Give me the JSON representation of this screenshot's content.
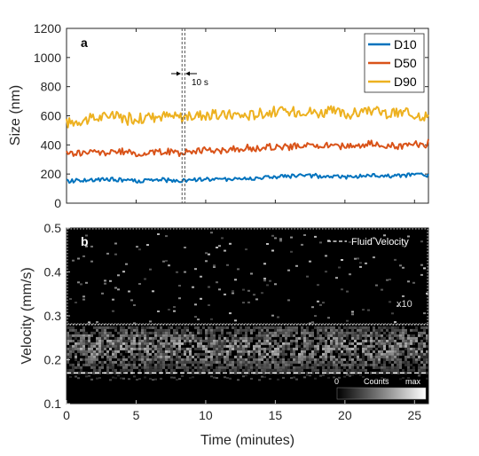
{
  "panel_a": {
    "letter": "a",
    "ylabel": "Size (nm)",
    "ytick_labels": [
      "0",
      "200",
      "400",
      "600",
      "800",
      "1000",
      "1200"
    ],
    "annotation": "10 s",
    "colors": {
      "D10": "#0072BD",
      "D50": "#D95319",
      "D90": "#EDB120"
    }
  },
  "panel_b": {
    "letter": "b",
    "ylabel": "Velocity (mm/s)",
    "xlabel": "Time (minutes)",
    "ytick_labels": [
      "0.1",
      "0.2",
      "0.3",
      "0.4",
      "0.5"
    ],
    "xtick_labels": [
      "0",
      "5",
      "10",
      "15",
      "20",
      "25"
    ],
    "legend_label": "Fluid Velocity",
    "scale_label": "x10",
    "colorbar": {
      "min_label": "0",
      "mid_label": "Counts",
      "max_label": "max"
    }
  },
  "chart_data": [
    {
      "type": "line",
      "xlabel": "",
      "ylabel": "Size (nm)",
      "xlim": [
        0,
        26
      ],
      "ylim": [
        0,
        1200
      ],
      "legend_position": "top-right",
      "marker_lines_minutes": [
        8.3,
        8.5
      ],
      "x": [
        0,
        1,
        2,
        3,
        4,
        5,
        6,
        7,
        8,
        9,
        10,
        11,
        12,
        13,
        14,
        15,
        16,
        17,
        18,
        19,
        20,
        21,
        22,
        23,
        24,
        25,
        26
      ],
      "series": [
        {
          "name": "D10",
          "color": "#0072BD",
          "values": [
            150,
            160,
            155,
            165,
            160,
            150,
            155,
            160,
            150,
            160,
            165,
            160,
            170,
            165,
            175,
            180,
            185,
            190,
            180,
            185,
            180,
            185,
            190,
            185,
            190,
            195,
            190
          ]
        },
        {
          "name": "D50",
          "color": "#D95319",
          "values": [
            340,
            345,
            350,
            345,
            355,
            340,
            350,
            355,
            350,
            360,
            365,
            360,
            375,
            370,
            380,
            390,
            385,
            400,
            390,
            395,
            390,
            400,
            410,
            395,
            390,
            400,
            395
          ]
        },
        {
          "name": "D90",
          "color": "#EDB120",
          "values": [
            550,
            570,
            580,
            600,
            590,
            580,
            590,
            600,
            590,
            600,
            610,
            600,
            610,
            600,
            620,
            630,
            620,
            640,
            620,
            630,
            610,
            620,
            640,
            610,
            620,
            610,
            600
          ]
        }
      ]
    },
    {
      "type": "heatmap",
      "xlabel": "Time (minutes)",
      "ylabel": "Velocity (mm/s)",
      "xlim": [
        0,
        26
      ],
      "ylim": [
        0.1,
        0.5
      ],
      "fluid_velocity_mm_s": 0.17,
      "scale_boundary_mm_s": 0.28,
      "upper_region_scale": "x10",
      "description_of_counts": "dense counts between 0.17 and 0.28 mm/s, sparse above 0.28"
    }
  ]
}
